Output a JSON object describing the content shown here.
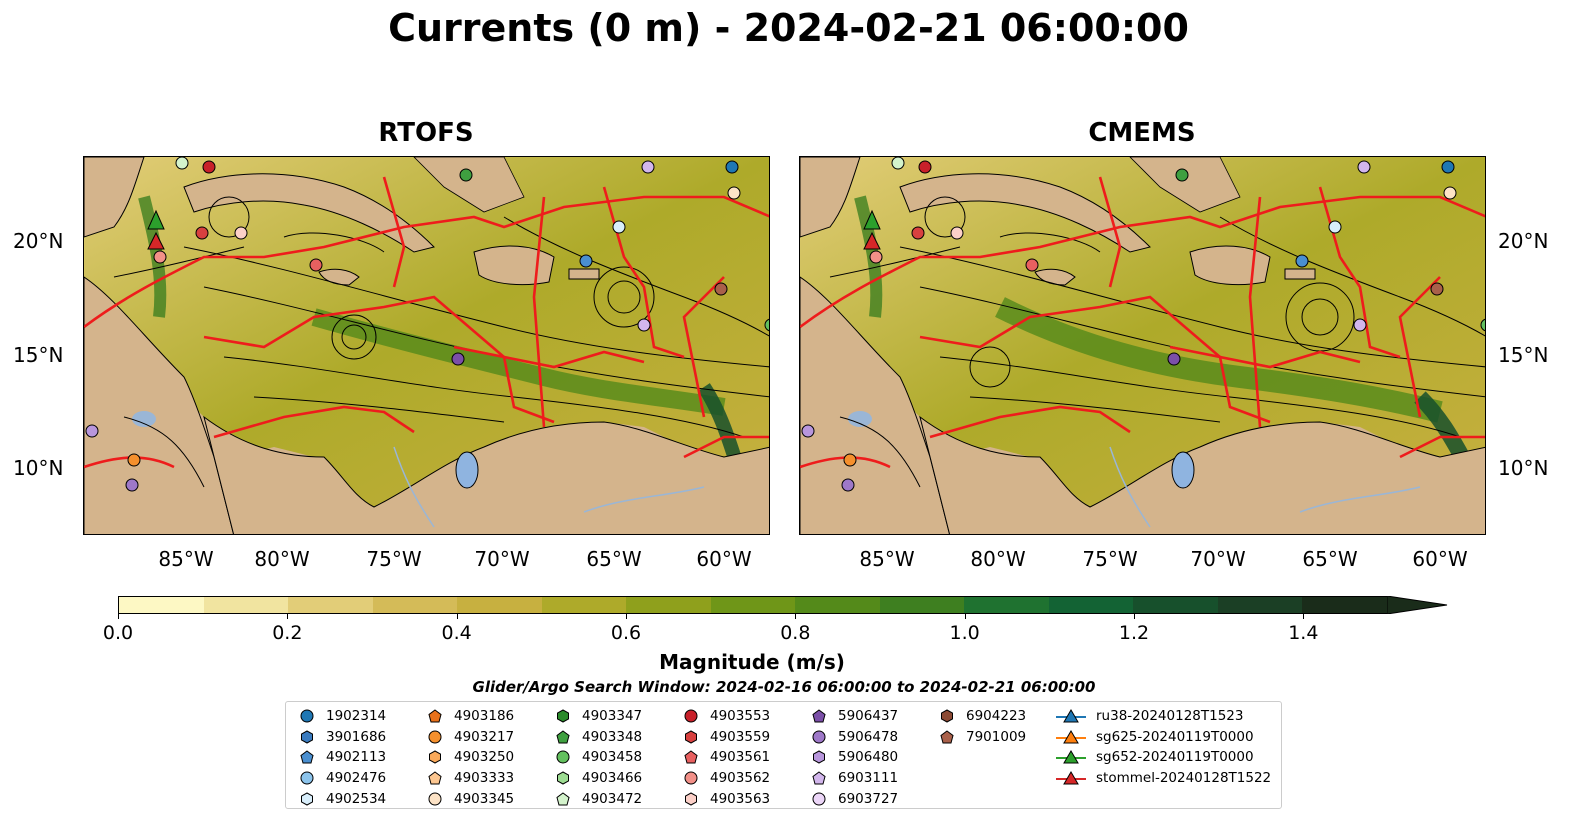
{
  "figure": {
    "title": "Currents (0 m) - 2024-02-21 06:00:00"
  },
  "panels": [
    {
      "title": "RTOFS"
    },
    {
      "title": "CMEMS"
    }
  ],
  "axes": {
    "lat_labels": [
      "20°N",
      "15°N",
      "10°N"
    ],
    "lon_labels": [
      "85°W",
      "80°W",
      "75°W",
      "70°W",
      "65°W",
      "60°W"
    ]
  },
  "colorbar": {
    "label": "Magnitude (m/s)",
    "ticks": [
      "0.0",
      "0.2",
      "0.4",
      "0.6",
      "0.8",
      "1.0",
      "1.2",
      "1.4"
    ],
    "range": [
      0.0,
      1.5
    ],
    "extend": "max",
    "colors": [
      "#fdf8c4",
      "#f1e4a0",
      "#e2cd78",
      "#d4bb58",
      "#c7b040",
      "#aeaa2a",
      "#8fa01c",
      "#6f9618",
      "#548a1a",
      "#3e7f20",
      "#1f7230",
      "#136334",
      "#17502c",
      "#1b3f25",
      "#1a2c1a"
    ]
  },
  "search_window": "Glider/Argo Search Window: 2024-02-16 06:00:00 to 2024-02-21 06:00:00",
  "legend": {
    "columns": [
      [
        {
          "label": "1902314",
          "color": "#1f77b4",
          "marker": "circle"
        },
        {
          "label": "3901686",
          "color": "#3a7bbf",
          "marker": "hexagon"
        },
        {
          "label": "4902113",
          "color": "#4a8fd0",
          "marker": "pentagon"
        },
        {
          "label": "4902476",
          "color": "#8cc4ec",
          "marker": "circle"
        },
        {
          "label": "4902534",
          "color": "#d8eefb",
          "marker": "hexagon"
        }
      ],
      [
        {
          "label": "4903186",
          "color": "#e8711a",
          "marker": "pentagon"
        },
        {
          "label": "4903217",
          "color": "#f5902d",
          "marker": "circle"
        },
        {
          "label": "4903250",
          "color": "#f9a95a",
          "marker": "hexagon"
        },
        {
          "label": "4903333",
          "color": "#fcc690",
          "marker": "pentagon"
        },
        {
          "label": "4903345",
          "color": "#fde3c6",
          "marker": "circle"
        }
      ],
      [
        {
          "label": "4903347",
          "color": "#2a8a2a",
          "marker": "hexagon"
        },
        {
          "label": "4903348",
          "color": "#3fa040",
          "marker": "pentagon"
        },
        {
          "label": "4903458",
          "color": "#63c05e",
          "marker": "circle"
        },
        {
          "label": "4903466",
          "color": "#9ddc92",
          "marker": "hexagon"
        },
        {
          "label": "4903472",
          "color": "#d4f3cc",
          "marker": "pentagon"
        }
      ],
      [
        {
          "label": "4903553",
          "color": "#c8202a",
          "marker": "circle"
        },
        {
          "label": "4903559",
          "color": "#d8403f",
          "marker": "hexagon"
        },
        {
          "label": "4903561",
          "color": "#e86060",
          "marker": "pentagon"
        },
        {
          "label": "4903562",
          "color": "#f29088",
          "marker": "circle"
        },
        {
          "label": "4903563",
          "color": "#fcd0c8",
          "marker": "hexagon"
        }
      ],
      [
        {
          "label": "5906437",
          "color": "#7b4fa8",
          "marker": "pentagon"
        },
        {
          "label": "5906478",
          "color": "#9e78c8",
          "marker": "circle"
        },
        {
          "label": "5906480",
          "color": "#b896dc",
          "marker": "hexagon"
        },
        {
          "label": "6903111",
          "color": "#d2b6ec",
          "marker": "pentagon"
        },
        {
          "label": "6903727",
          "color": "#ecd6f8",
          "marker": "circle"
        }
      ],
      [
        {
          "label": "6904223",
          "color": "#8c4a34",
          "marker": "hexagon"
        },
        {
          "label": "7901009",
          "color": "#a9604a",
          "marker": "pentagon"
        }
      ],
      [
        {
          "label": "ru38-20240128T1523",
          "color": "#1f77b4",
          "marker": "triangle"
        },
        {
          "label": "sg625-20240119T0000",
          "color": "#ff7f0e",
          "marker": "triangle"
        },
        {
          "label": "sg652-20240119T0000",
          "color": "#2ca02c",
          "marker": "triangle"
        },
        {
          "label": "stommel-20240128T1522",
          "color": "#d62728",
          "marker": "triangle"
        }
      ]
    ]
  },
  "colors": {
    "land": "#d4b48c",
    "eez_boundary": "#ee1c1c",
    "lake": "#8fb4e0",
    "river": "#9ab6d6"
  }
}
